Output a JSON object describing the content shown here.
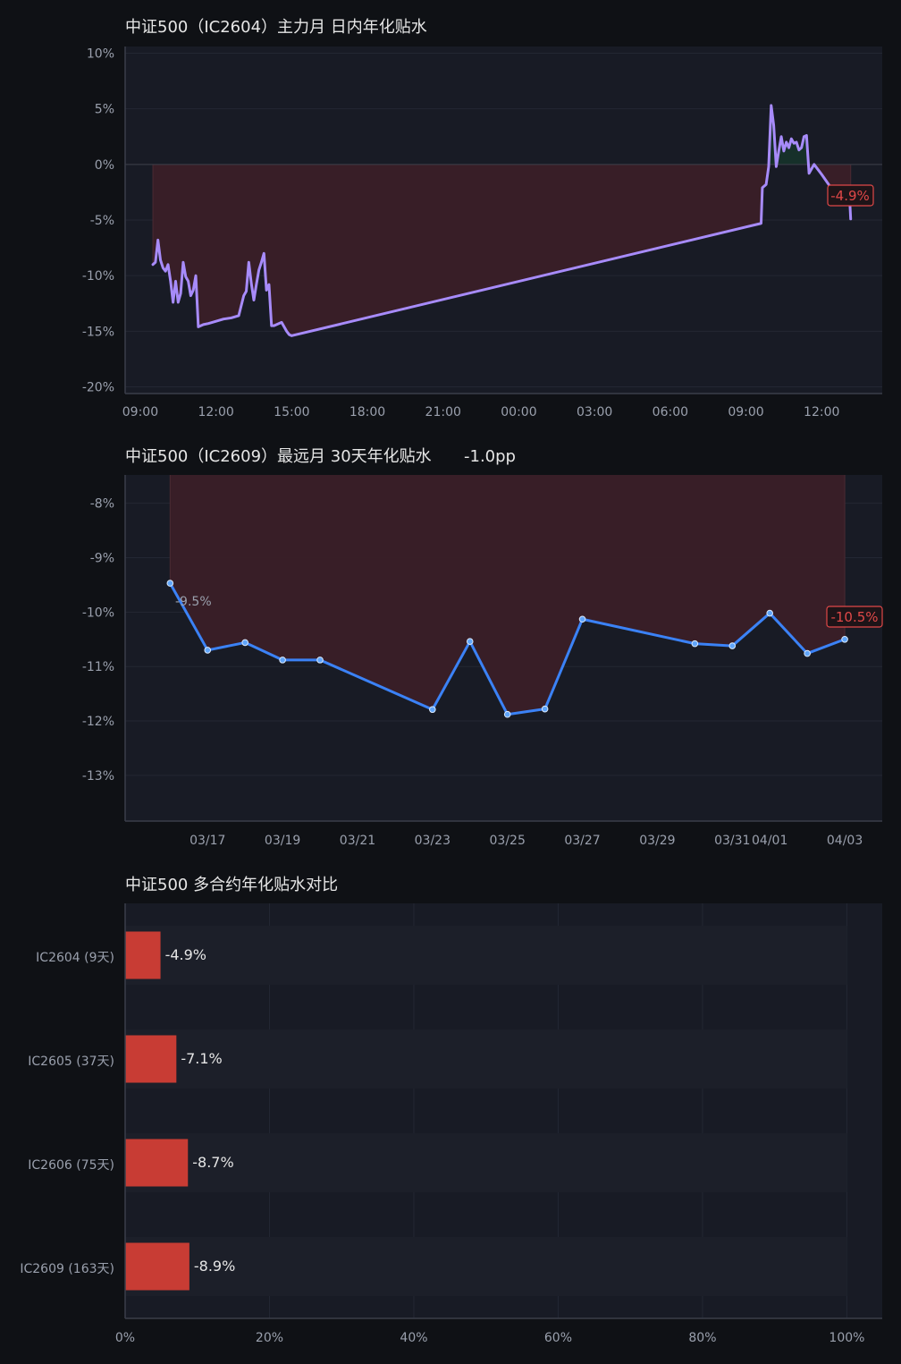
{
  "theme": {
    "background": "#0f1115",
    "panel": "#181b25",
    "axis": "#3a3e4a",
    "grid": "#232733",
    "text_title": "#e6e6e6",
    "text_axis": "#9aa0ad",
    "purple_line": "#a78bfa",
    "blue_line": "#3b82f6",
    "red_fill": "#3a1f27",
    "green_fill": "#16322a",
    "red_accent": "#e04848",
    "bar_red": "#c83c34"
  },
  "chart_data": [
    {
      "type": "line",
      "title": "中证500（IC2604）主力月 日内年化贴水",
      "x_ticks": [
        "09:00",
        "12:00",
        "15:00",
        "18:00",
        "21:00",
        "00:00",
        "03:00",
        "06:00",
        "09:00",
        "12:00"
      ],
      "x_tick_hours": [
        9,
        12,
        15,
        18,
        21,
        24,
        27,
        30,
        33,
        36
      ],
      "x_range_hours": [
        8.4,
        38.4
      ],
      "y_ticks": [
        10,
        5,
        0,
        -5,
        -10,
        -15,
        -20
      ],
      "y_tick_labels": [
        "10%",
        "5%",
        "0%",
        "-5%",
        "-10%",
        "-15%",
        "-20%"
      ],
      "ylim": [
        -20.6,
        10.6
      ],
      "fill_reference": 0,
      "series": [
        {
          "x": [
            9.5,
            9.6,
            9.7,
            9.8,
            9.9,
            10.0,
            10.1,
            10.2,
            10.3,
            10.4,
            10.5,
            10.6,
            10.7,
            10.8,
            10.9,
            11.0,
            11.1,
            11.2,
            11.3,
            11.5,
            11.7,
            12.0,
            12.3,
            12.6,
            12.9,
            13.1,
            13.2,
            13.3,
            13.4,
            13.5,
            13.6,
            13.7,
            13.8,
            13.9,
            14.0,
            14.1,
            14.2,
            14.3,
            14.4,
            14.5,
            14.6,
            14.7,
            14.8,
            14.9,
            15.0,
            33.6,
            33.65,
            33.8,
            33.9,
            34.0,
            34.1,
            34.2,
            34.3,
            34.4,
            34.5,
            34.6,
            34.7,
            34.8,
            34.9,
            35.0,
            35.1,
            35.2,
            35.3,
            35.4,
            35.5,
            35.7,
            36.0,
            36.4,
            37.1,
            37.15
          ],
          "y": [
            -9.0,
            -8.8,
            -6.8,
            -8.6,
            -9.3,
            -9.6,
            -9.0,
            -10.5,
            -12.4,
            -10.5,
            -12.4,
            -11.6,
            -8.8,
            -10.1,
            -10.5,
            -11.8,
            -11.3,
            -10.0,
            -14.6,
            -14.4,
            -14.3,
            -14.1,
            -13.9,
            -13.8,
            -13.6,
            -11.8,
            -11.4,
            -8.8,
            -10.7,
            -12.2,
            -10.8,
            -9.5,
            -8.8,
            -8.0,
            -11.3,
            -10.8,
            -14.5,
            -14.5,
            -14.4,
            -14.3,
            -14.2,
            -14.6,
            -15.0,
            -15.3,
            -15.4,
            -5.3,
            -2.1,
            -1.8,
            -0.2,
            5.3,
            3.5,
            -0.2,
            1.2,
            2.5,
            1.2,
            2.0,
            1.5,
            2.3,
            1.9,
            2.0,
            1.3,
            1.5,
            2.5,
            2.6,
            -0.8,
            0.0,
            -0.9,
            -2.2,
            -2.7,
            -4.9
          ]
        }
      ],
      "last_label": "-4.9%"
    },
    {
      "type": "line",
      "title": "中证500（IC2609）最远月 30天年化贴水",
      "title_suffix": "-1.0pp",
      "x_ticks": [
        "03/17",
        "03/19",
        "03/21",
        "03/23",
        "03/25",
        "03/27",
        "03/29",
        "03/31",
        "04/01",
        "04/03"
      ],
      "x_tick_days": [
        17,
        19,
        21,
        23,
        25,
        27,
        29,
        31,
        32,
        34
      ],
      "x_range_days": [
        14.8,
        35.0
      ],
      "y_ticks": [
        -8,
        -9,
        -10,
        -11,
        -12,
        -13
      ],
      "y_tick_labels": [
        "-8%",
        "-9%",
        "-10%",
        "-11%",
        "-12%",
        "-13%"
      ],
      "ylim": [
        -13.84,
        -7.48
      ],
      "fill_reference": -7.48,
      "series": [
        {
          "x": [
            16,
            17,
            18,
            19,
            20,
            23,
            24,
            25,
            26,
            27,
            30,
            31,
            32,
            33,
            34
          ],
          "y": [
            -9.47,
            -10.7,
            -10.56,
            -10.88,
            -10.88,
            -11.79,
            -10.54,
            -11.88,
            -11.78,
            -10.13,
            -10.58,
            -10.62,
            -10.02,
            -10.76,
            -10.5
          ]
        }
      ],
      "first_label": "-9.5%",
      "last_label": "-10.5%"
    },
    {
      "type": "bar",
      "orientation": "horizontal",
      "title": "中证500 多合约年化贴水对比",
      "categories": [
        "IC2604 (9天)",
        "IC2605 (37天)",
        "IC2606 (75天)",
        "IC2609 (163天)"
      ],
      "values": [
        4.9,
        7.1,
        8.7,
        8.9
      ],
      "value_labels": [
        "-4.9%",
        "-7.1%",
        "-8.7%",
        "-8.9%"
      ],
      "x_ticks": [
        0,
        20,
        40,
        60,
        80,
        100
      ],
      "x_tick_labels": [
        "0%",
        "20%",
        "40%",
        "60%",
        "80%",
        "100%"
      ],
      "xlim": [
        0,
        104.9
      ]
    }
  ]
}
